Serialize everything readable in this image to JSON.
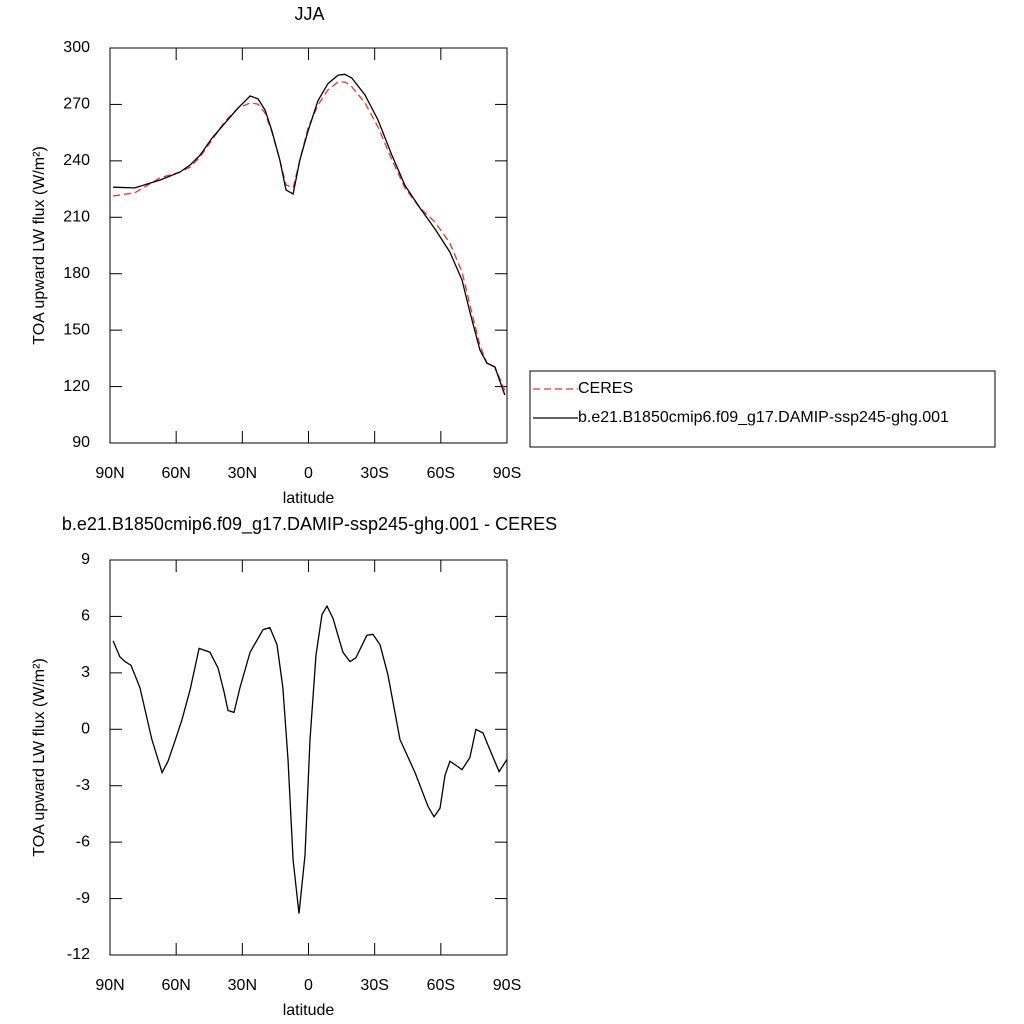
{
  "chart_data": [
    {
      "type": "line",
      "title": "JJA",
      "xlabel": "latitude",
      "ylabel": "TOA upward LW flux (W/m²)",
      "xlim": [
        90,
        -90
      ],
      "ylim": [
        90,
        300
      ],
      "xticks": [
        {
          "value": 90,
          "label": "90N"
        },
        {
          "value": 60,
          "label": "60N"
        },
        {
          "value": 30,
          "label": "30N"
        },
        0,
        {
          "value": -30,
          "label": "30S"
        },
        {
          "value": -60,
          "label": "60S"
        },
        {
          "value": -90,
          "label": "90S"
        }
      ],
      "yticks": [
        90,
        120,
        150,
        180,
        210,
        240,
        270,
        300
      ],
      "legend": "outside-right",
      "x": [
        88.6,
        78.7,
        67.3,
        58.3,
        53.7,
        49.2,
        43.8,
        37.9,
        32,
        26.5,
        22.9,
        19.7,
        16.6,
        13,
        10.2,
        7,
        3.9,
        0.2,
        -4.3,
        -8.8,
        -13.4,
        -16.5,
        -19.7,
        -25.6,
        -31.5,
        -37.8,
        -43.7,
        -50.5,
        -57.3,
        -64.1,
        -69.6,
        -73.2,
        -77.7,
        -80.9,
        -84.5,
        -89
      ],
      "series": [
        {
          "name": "CERES",
          "color": "#e8332d",
          "linestyle": "dashed",
          "values": [
            221.3,
            223,
            231,
            234,
            236.7,
            242,
            251,
            261,
            268,
            270.8,
            270.2,
            265.4,
            255.3,
            240.5,
            227.2,
            225.6,
            240.5,
            257.5,
            269.7,
            277.7,
            281.9,
            281.9,
            279.3,
            270.8,
            258,
            240.5,
            225.6,
            215,
            207.5,
            196.3,
            181,
            163.4,
            142,
            132.5,
            130.4,
            118
          ]
        },
        {
          "name": "b.e21.B1850cmip6.f09_g17.DAMIP-ssp245-ghg.001",
          "color": "#000000",
          "linestyle": "solid",
          "values": [
            226,
            225.6,
            229.8,
            234,
            237.8,
            243,
            252,
            260,
            268,
            274.5,
            273,
            267,
            256,
            240.5,
            224.5,
            222.4,
            240.5,
            256,
            272,
            281,
            285.6,
            286,
            284,
            275,
            261.7,
            243,
            227,
            215,
            203.8,
            191.5,
            176.7,
            159.6,
            139.5,
            132.5,
            130.4,
            115.5
          ]
        }
      ]
    },
    {
      "type": "line",
      "title": "b.e21.B1850cmip6.f09_g17.DAMIP-ssp245-ghg.001 - CERES",
      "xlabel": "latitude",
      "ylabel": "TOA upward LW flux (W/m²)",
      "xlim": [
        90,
        -90
      ],
      "ylim": [
        -12,
        9
      ],
      "xticks": [
        {
          "value": 90,
          "label": "90N"
        },
        {
          "value": 60,
          "label": "60N"
        },
        {
          "value": 30,
          "label": "30N"
        },
        0,
        {
          "value": -30,
          "label": "30S"
        },
        {
          "value": -60,
          "label": "60S"
        },
        {
          "value": -90,
          "label": "90S"
        }
      ],
      "yticks": [
        -12,
        -9,
        -6,
        -3,
        0,
        3,
        6,
        9
      ],
      "x": [
        88.6,
        85.5,
        83.2,
        80.5,
        76.4,
        71,
        66.4,
        63.7,
        60.5,
        57.4,
        53.7,
        49.6,
        44.7,
        41,
        38.3,
        36.5,
        33.8,
        31.1,
        26.5,
        20.6,
        17.5,
        14.3,
        11.6,
        9.3,
        7,
        4.3,
        1.6,
        -0.7,
        -3.4,
        -6.1,
        -8.4,
        -11.1,
        -15.6,
        -18.8,
        -21.5,
        -26.5,
        -29.2,
        -32.4,
        -36,
        -41.5,
        -48.3,
        -54.2,
        -56.9,
        -59.6,
        -61.9,
        -64.1,
        -67.3,
        -69.6,
        -73.2,
        -75.9,
        -79.1,
        -82.3,
        -86.4,
        -90
      ],
      "series": [
        {
          "color": "#000000",
          "linestyle": "solid",
          "values": [
            4.7,
            3.85,
            3.6,
            3.4,
            2.2,
            -0.55,
            -2.3,
            -1.7,
            -0.6,
            0.5,
            2.1,
            4.3,
            4.1,
            3.25,
            2,
            1,
            0.9,
            2.2,
            4.1,
            5.3,
            5.4,
            4.5,
            2.2,
            -1.6,
            -6.95,
            -9.8,
            -6.7,
            -0.55,
            3.95,
            6.1,
            6.55,
            5.9,
            4.1,
            3.6,
            3.8,
            5,
            5.05,
            4.5,
            2.9,
            -0.55,
            -2.3,
            -4.1,
            -4.65,
            -4.2,
            -2.45,
            -1.7,
            -1.95,
            -2.15,
            -1.5,
            0,
            -0.2,
            -1.1,
            -2.25,
            -1.6
          ]
        }
      ]
    }
  ]
}
